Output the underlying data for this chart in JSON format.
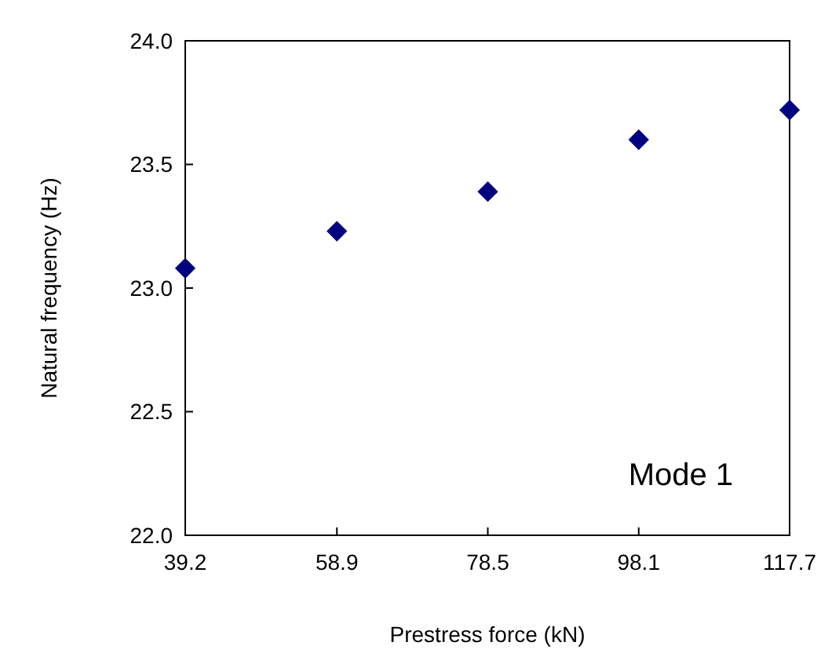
{
  "chart_data": {
    "type": "scatter",
    "xlabel": "Prestress force (kN)",
    "ylabel": "Natural frequency (Hz)",
    "annotations": [
      "Mode 1"
    ],
    "x": [
      39.2,
      58.9,
      78.5,
      98.1,
      117.7
    ],
    "series": [
      {
        "color": "#000080",
        "values": [
          23.08,
          23.23,
          23.39,
          23.6,
          23.72
        ]
      }
    ],
    "xlim": [
      39.2,
      117.7
    ],
    "xticks": [
      39.2,
      58.9,
      78.5,
      98.1,
      117.7
    ],
    "ylim": [
      22,
      24
    ],
    "yticks": [
      {
        "value": 22,
        "label": "22.0"
      },
      {
        "value": 22.5,
        "label": "22.5"
      },
      {
        "value": 23,
        "label": "23.0"
      },
      {
        "value": 23.5,
        "label": "23.5"
      },
      {
        "value": 24,
        "label": "24.0"
      }
    ],
    "marker": "diamond"
  }
}
